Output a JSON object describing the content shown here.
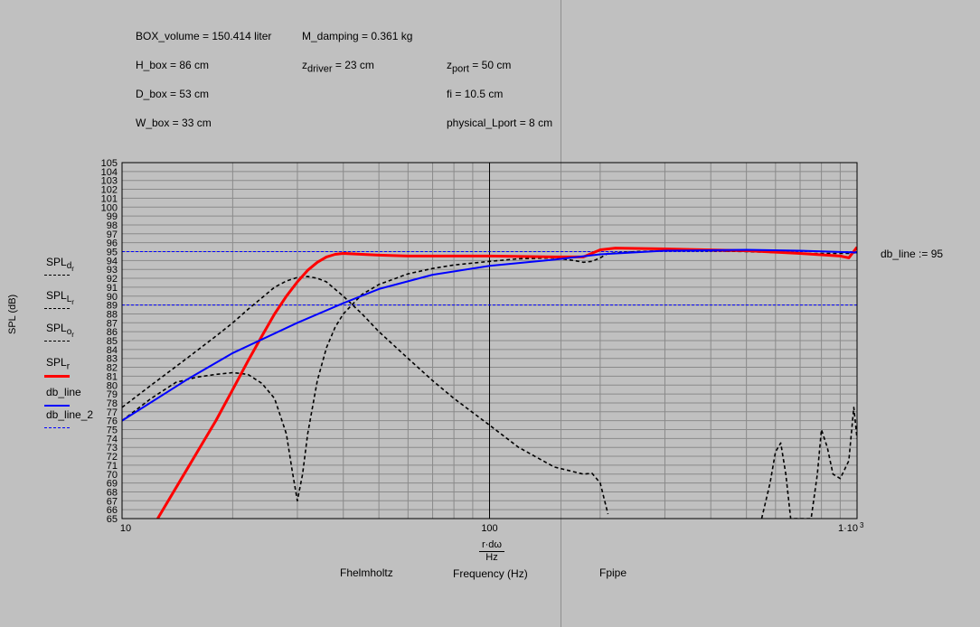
{
  "params": {
    "box_volume": "BOX_volume = 150.414 liter",
    "m_damping": "M_damping = 0.361 kg",
    "h_box": "H_box = 86 cm",
    "z_driver_main": "z",
    "z_driver_sub": "driver",
    "z_driver_val": " = 23 cm",
    "z_port_main": "z",
    "z_port_sub": "port",
    "z_port_val": " = 50 cm",
    "d_box": "D_box = 53 cm",
    "fi": "fi = 10.5 cm",
    "w_box": "W_box = 33 cm",
    "physical_lport": "physical_Lport = 8 cm"
  },
  "legend": [
    {
      "main": "SPL",
      "sub": "d",
      "subsub": "r",
      "color": "#000000",
      "style": "dash"
    },
    {
      "main": "SPL",
      "sub": "L",
      "subsub": "r",
      "color": "#000000",
      "style": "dash"
    },
    {
      "main": "SPL",
      "sub": "o",
      "subsub": "r",
      "color": "#000000",
      "style": "dash"
    },
    {
      "main": "SPL",
      "sub": "r",
      "subsub": "",
      "color": "#ff0000",
      "style": "solid-thick"
    },
    {
      "main": "db_line",
      "sub": "",
      "subsub": "",
      "color": "#0000ff",
      "style": "solid"
    },
    {
      "main": "db_line_2",
      "sub": "",
      "subsub": "",
      "color": "#0000ff",
      "style": "dash-thin"
    }
  ],
  "ylabel_text": "SPL (dB)",
  "x_expr_top": "r·dω",
  "x_expr_bottom": "Hz",
  "xlabel_text": "Frequency (Hz)",
  "fhelmholtz_label": "Fhelmholtz",
  "fpipe_label": "Fpipe",
  "db_line_annotation": "db_line := 95",
  "chart_data": {
    "type": "line",
    "xscale": "log",
    "xlim": [
      10,
      1000
    ],
    "ylim": [
      65,
      105
    ],
    "x_ticks": [
      "10",
      "100",
      "1·10"
    ],
    "x_tick_superscript": "3",
    "y_ticks": [
      65,
      66,
      67,
      68,
      69,
      70,
      71,
      72,
      73,
      74,
      75,
      76,
      77,
      78,
      79,
      80,
      81,
      82,
      83,
      84,
      85,
      86,
      87,
      88,
      89,
      90,
      91,
      92,
      93,
      94,
      95,
      96,
      97,
      98,
      99,
      100,
      101,
      102,
      103,
      104,
      105
    ],
    "hlines": [
      {
        "name": "db_line",
        "y": 95,
        "color": "#0000ff"
      },
      {
        "name": "db_line_2",
        "y": 89,
        "color": "#0000ff"
      }
    ],
    "series": [
      {
        "color": "#000000",
        "style": "dash",
        "x": [
          10,
          12,
          15,
          18,
          20,
          22,
          24,
          26,
          28,
          30,
          32,
          34,
          36,
          40,
          45,
          50,
          60,
          70,
          80,
          100,
          120,
          150,
          180,
          190,
          200,
          210
        ],
        "y": [
          77.5,
          80,
          83,
          85.5,
          87,
          88.5,
          89.8,
          91,
          91.7,
          92.1,
          92.2,
          92,
          91.6,
          90,
          88,
          86,
          83,
          80.5,
          78.5,
          75.5,
          73,
          70.8,
          70,
          70.1,
          69,
          65.5
        ]
      },
      {
        "color": "#000000",
        "style": "dash",
        "x": [
          10,
          12,
          14,
          16,
          18,
          20,
          21,
          22,
          24,
          26,
          28,
          29,
          30,
          31,
          32,
          34,
          36,
          38,
          40,
          45,
          50,
          60,
          70,
          80,
          100,
          120,
          150,
          170,
          180,
          190,
          200,
          210,
          250,
          300,
          400,
          500,
          600,
          700,
          800,
          850,
          900,
          950,
          1000
        ],
        "y": [
          76,
          78.5,
          80.3,
          80.9,
          81.2,
          81.4,
          81.3,
          81.2,
          80.2,
          78.5,
          74.5,
          70.5,
          67,
          70,
          74.5,
          80.5,
          84.2,
          86.5,
          88,
          90.2,
          91.3,
          92.5,
          93.1,
          93.5,
          93.9,
          94.2,
          94.3,
          94,
          93.8,
          93.9,
          94.3,
          94.8,
          95,
          95.1,
          95.1,
          95,
          94.9,
          94.8,
          94.8,
          94.8,
          94.8,
          94.8,
          94.9
        ]
      },
      {
        "color": "#000000",
        "style": "dash",
        "x": [
          550,
          580,
          600,
          620,
          640,
          660,
          700,
          750,
          780,
          800,
          830,
          860,
          900,
          950,
          980,
          1000
        ],
        "y": [
          65,
          69,
          72.5,
          73.5,
          70,
          65,
          65,
          65,
          70,
          75,
          73,
          70,
          69.5,
          71.5,
          77.5,
          74
        ]
      },
      {
        "color": "#ff0000",
        "style": "solid-thick",
        "x": [
          12.5,
          15,
          18,
          20,
          22,
          24,
          26,
          28,
          30,
          32,
          34,
          36,
          38,
          40,
          45,
          50,
          60,
          80,
          100,
          150,
          180,
          200,
          220,
          300,
          500,
          700,
          900,
          950,
          1000
        ],
        "y": [
          65,
          70.5,
          76,
          79.5,
          82.7,
          85.5,
          88,
          90,
          91.6,
          92.9,
          93.8,
          94.4,
          94.7,
          94.8,
          94.7,
          94.6,
          94.5,
          94.5,
          94.5,
          94.4,
          94.4,
          95.2,
          95.4,
          95.3,
          95.1,
          94.8,
          94.5,
          94.3,
          95.5
        ]
      },
      {
        "color": "#0000ff",
        "style": "solid",
        "x": [
          10,
          15,
          20,
          30,
          40,
          50,
          70,
          100,
          150,
          200,
          300,
          500,
          700,
          1000
        ],
        "y": [
          76,
          80.6,
          83.6,
          87,
          89.2,
          90.8,
          92.4,
          93.4,
          94.1,
          94.7,
          95.1,
          95.2,
          95.1,
          94.9
        ]
      }
    ]
  }
}
